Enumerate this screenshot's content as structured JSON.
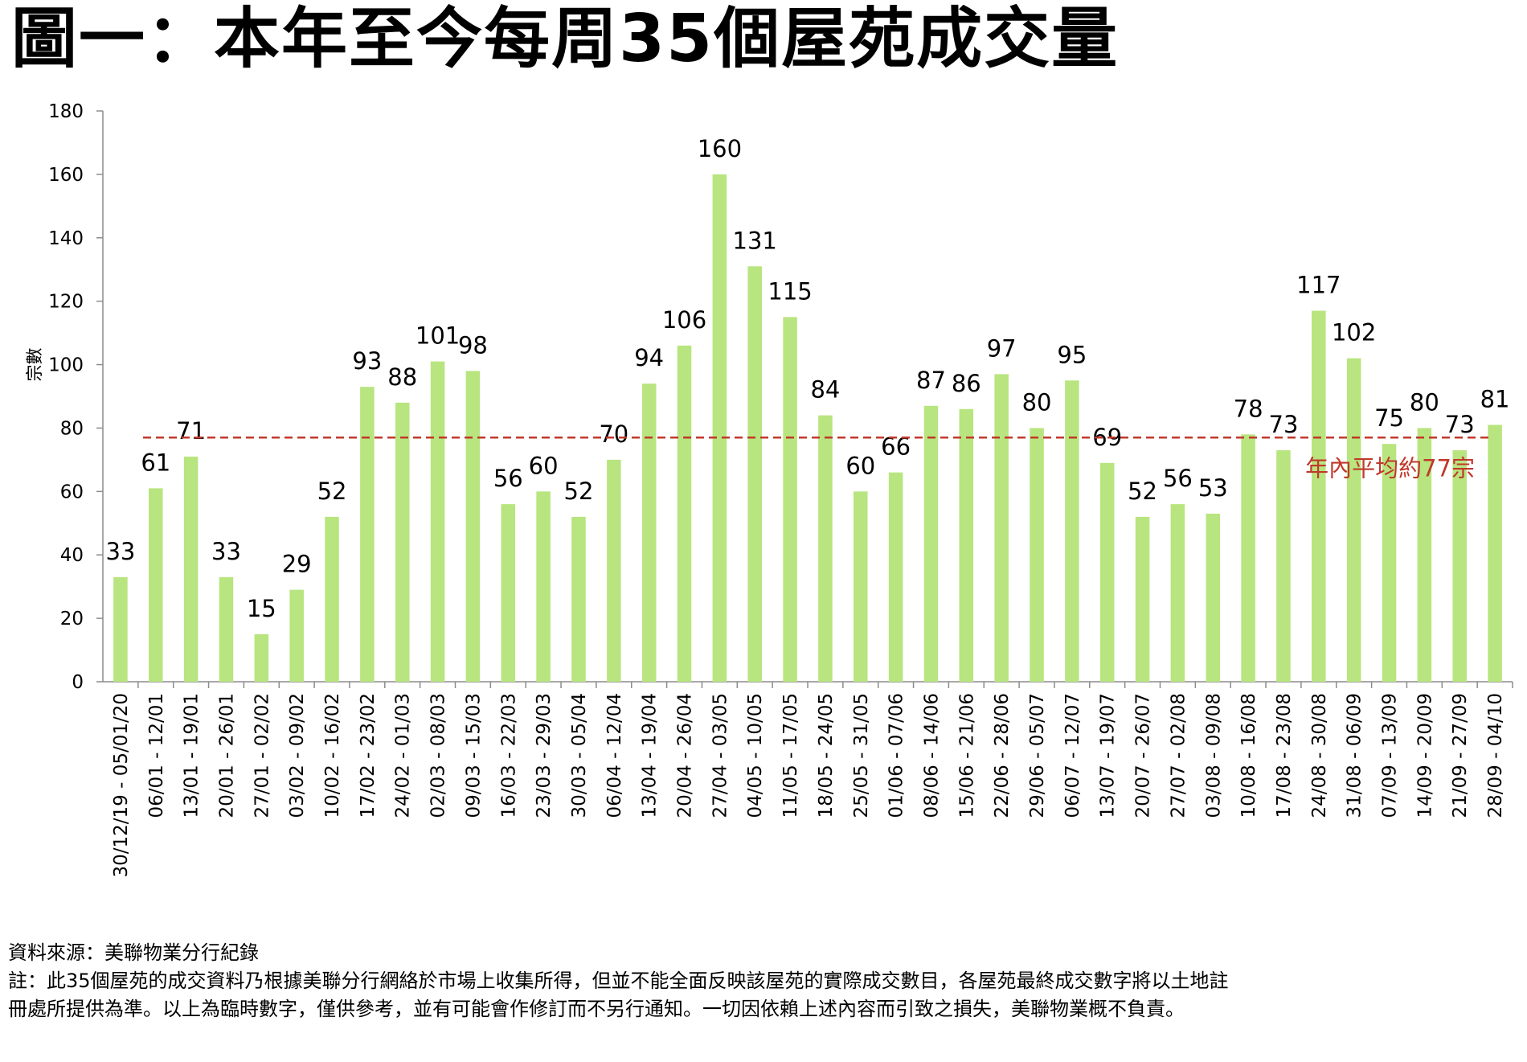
{
  "chart_data": {
    "type": "bar",
    "title": "圖一：本年至今每周35個屋苑成交量",
    "ylabel": "宗數",
    "ylim": [
      0,
      180
    ],
    "yticks": [
      0,
      20,
      40,
      60,
      80,
      100,
      120,
      140,
      160,
      180
    ],
    "grid": false,
    "bar_color": "#b8e57f",
    "categories": [
      "30/12/19 - 05/01/20",
      "06/01 - 12/01",
      "13/01 - 19/01",
      "20/01 - 26/01",
      "27/01 - 02/02",
      "03/02 - 09/02",
      "10/02 - 16/02",
      "17/02 - 23/02",
      "24/02 - 01/03",
      "02/03 - 08/03",
      "09/03 - 15/03",
      "16/03 - 22/03",
      "23/03 - 29/03",
      "30/03 - 05/04",
      "06/04 - 12/04",
      "13/04 - 19/04",
      "20/04 - 26/04",
      "27/04 - 03/05",
      "04/05 - 10/05",
      "11/05 - 17/05",
      "18/05 - 24/05",
      "25/05 - 31/05",
      "01/06 - 07/06",
      "08/06 - 14/06",
      "15/06 - 21/06",
      "22/06 - 28/06",
      "29/06 - 05/07",
      "06/07 - 12/07",
      "13/07 - 19/07",
      "20/07 - 26/07",
      "27/07 - 02/08",
      "03/08 - 09/08",
      "10/08 - 16/08",
      "17/08 - 23/08",
      "24/08 - 30/08",
      "31/08 - 06/09",
      "07/09 - 13/09",
      "14/09 - 20/09",
      "21/09 - 27/09",
      "28/09 - 04/10"
    ],
    "values": [
      33,
      61,
      71,
      33,
      15,
      29,
      52,
      93,
      88,
      101,
      98,
      56,
      60,
      52,
      70,
      94,
      106,
      160,
      131,
      115,
      84,
      60,
      66,
      87,
      86,
      97,
      80,
      95,
      69,
      52,
      56,
      53,
      78,
      73,
      117,
      102,
      75,
      80,
      73,
      81
    ],
    "average": {
      "value": 77,
      "label": "年內平均約77宗",
      "color": "#c0392b",
      "style": "dashed"
    }
  },
  "footer": {
    "source": "資料來源：美聯物業分行紀錄",
    "note_line1": "註：此35個屋苑的成交資料乃根據美聯分行網絡於市場上收集所得，但並不能全面反映該屋苑的實際成交數目，各屋苑最終成交數字將以土地註",
    "note_line2": "冊處所提供為準。以上為臨時數字，僅供參考，並有可能會作修訂而不另行通知。一切因依賴上述內容而引致之損失，美聯物業概不負責。"
  }
}
